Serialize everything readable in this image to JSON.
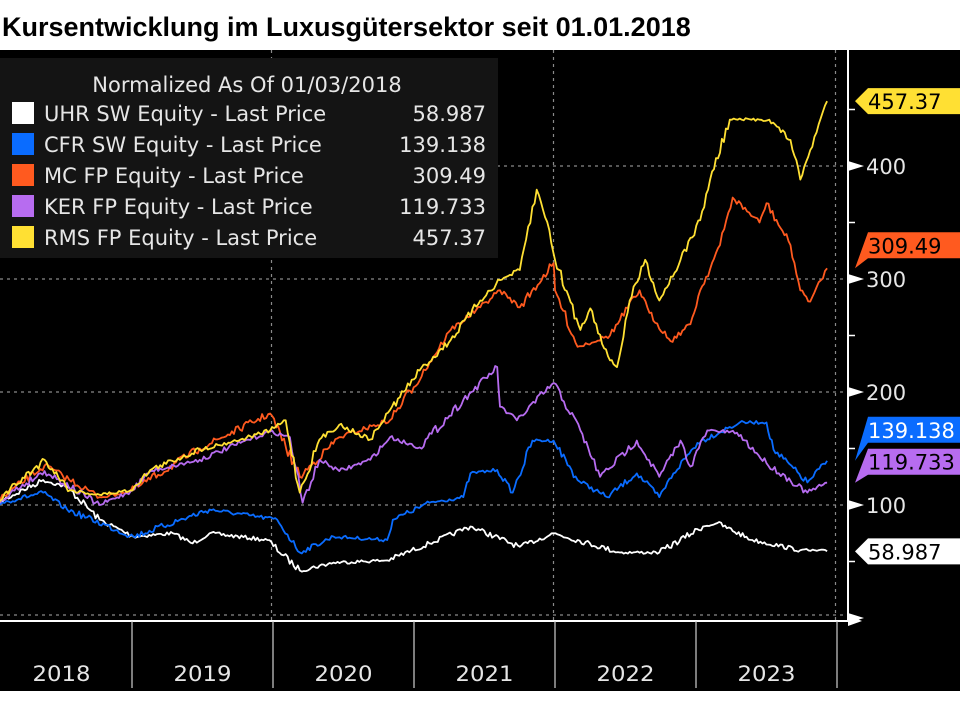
{
  "chart_data": {
    "type": "line",
    "title": "Kursentwicklung im Luxusgütersektor seit 01.01.2018",
    "legend_title": "Normalized As Of 01/03/2018",
    "legend_position": "top-left",
    "x_unit": "year",
    "xlim": [
      2018.0,
      2024.0
    ],
    "x_tick_labels": [
      "2018",
      "2019",
      "2020",
      "2021",
      "2022",
      "2023"
    ],
    "ylim": [
      0,
      500
    ],
    "y_ticks": [
      0,
      100,
      200,
      300,
      400
    ],
    "y_tick_labels": [
      "100",
      "200",
      "300",
      "400"
    ],
    "y_axis_side": "right",
    "grid": true,
    "background": "#000000",
    "series": [
      {
        "name": "UHR SW Equity - Last Price",
        "last": "58.987",
        "color": "#ffffff",
        "text_color": "#000000",
        "x": [
          2018.01,
          2018.37,
          2018.54,
          2018.77,
          2019.01,
          2019.29,
          2019.43,
          2019.55,
          2019.96,
          2020.19,
          2020.43,
          2020.81,
          2021.11,
          2021.4,
          2021.75,
          2021.99,
          2022.46,
          2022.74,
          2023.05,
          2023.15,
          2023.4,
          2023.74,
          2023.93
        ],
        "y": [
          100,
          122,
          116,
          87,
          72,
          75,
          66,
          75,
          69,
          42,
          49,
          51,
          66,
          81,
          63,
          75,
          58,
          58,
          81,
          84,
          69,
          60,
          58.987
        ]
      },
      {
        "name": "CFR SW Equity - Last Price",
        "last": "139.138",
        "color": "#0a6cff",
        "text_color": "#ffffff",
        "x": [
          2018.01,
          2018.37,
          2018.54,
          2019.01,
          2019.55,
          2020.03,
          2020.19,
          2020.43,
          2020.81,
          2020.85,
          2021.11,
          2021.35,
          2021.4,
          2021.59,
          2021.7,
          2021.84,
          2021.99,
          2022.16,
          2022.37,
          2022.58,
          2022.74,
          2022.84,
          2023.01,
          2023.31,
          2023.5,
          2023.55,
          2023.79,
          2023.93
        ],
        "y": [
          100,
          111,
          96,
          72,
          96,
          87,
          58,
          72,
          69,
          87,
          102,
          107,
          128,
          131,
          111,
          157,
          157,
          122,
          107,
          128,
          107,
          128,
          155,
          173,
          173,
          149,
          120,
          139.138
        ]
      },
      {
        "name": "MC FP Equity - Last Price",
        "last": "309.49",
        "color": "#ff5a1f",
        "text_color": "#000000",
        "x": [
          2018.01,
          2018.38,
          2018.77,
          2018.99,
          2019.48,
          2019.98,
          2020.19,
          2020.47,
          2020.83,
          2021.11,
          2021.26,
          2021.47,
          2021.61,
          2021.75,
          2021.99,
          2022.0,
          2022.16,
          2022.39,
          2022.6,
          2022.67,
          2022.82,
          2022.96,
          2023.03,
          2023.17,
          2023.26,
          2023.45,
          2023.5,
          2023.67,
          2023.74,
          2023.81,
          2023.93
        ],
        "y": [
          100,
          135,
          107,
          112,
          150,
          181,
          125,
          160,
          175,
          226,
          255,
          275,
          290,
          275,
          314,
          290,
          240,
          250,
          290,
          270,
          245,
          260,
          290,
          330,
          372,
          350,
          367,
          330,
          290,
          280,
          309.49
        ]
      },
      {
        "name": "KER FP Equity - Last Price",
        "last": "119.733",
        "color": "#b76cf0",
        "text_color": "#000000",
        "x": [
          2018.01,
          2018.38,
          2018.77,
          2018.99,
          2019.13,
          2019.48,
          2019.77,
          2019.98,
          2020.12,
          2020.21,
          2020.33,
          2020.47,
          2020.69,
          2020.83,
          2021.04,
          2021.35,
          2021.59,
          2021.61,
          2021.73,
          2021.99,
          2022.18,
          2022.32,
          2022.58,
          2022.74,
          2022.89,
          2022.96,
          2023.08,
          2023.29,
          2023.5,
          2023.79,
          2023.93
        ],
        "y": [
          100,
          130,
          100,
          112,
          130,
          140,
          155,
          165,
          160,
          102,
          140,
          130,
          140,
          160,
          151,
          193,
          222,
          187,
          175,
          208,
          166,
          125,
          157,
          125,
          157,
          134,
          166,
          164,
          137,
          111,
          119.733
        ]
      },
      {
        "name": "RMS FP Equity - Last Price",
        "last": "457.37",
        "color": "#ffe033",
        "text_color": "#000000",
        "x": [
          2018.01,
          2018.38,
          2018.56,
          2018.77,
          2018.99,
          2019.13,
          2019.48,
          2019.77,
          2019.98,
          2020.09,
          2020.19,
          2020.33,
          2020.47,
          2020.69,
          2020.83,
          2021.04,
          2021.26,
          2021.47,
          2021.61,
          2021.75,
          2021.87,
          2021.96,
          2022.0,
          2022.18,
          2022.25,
          2022.39,
          2022.44,
          2022.53,
          2022.64,
          2022.74,
          2022.89,
          2023.03,
          2023.1,
          2023.24,
          2023.45,
          2023.52,
          2023.67,
          2023.74,
          2023.81,
          2023.93
        ],
        "y": [
          100,
          140,
          113,
          109,
          113,
          131,
          149,
          158,
          166,
          175,
          111,
          158,
          171,
          158,
          184,
          219,
          246,
          281,
          299,
          308,
          379,
          343,
          317,
          255,
          274,
          228,
          222,
          281,
          317,
          281,
          317,
          352,
          388,
          441,
          441,
          441,
          423,
          388,
          414,
          457.37
        ]
      }
    ]
  }
}
